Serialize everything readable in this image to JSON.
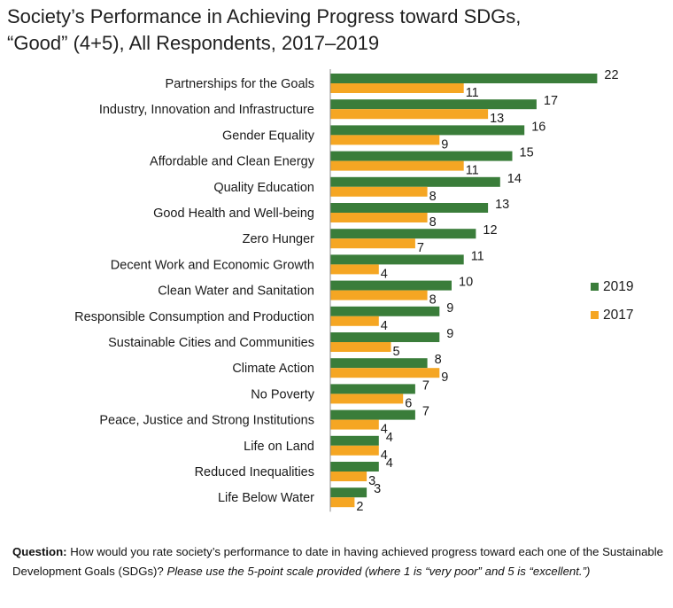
{
  "title": "Society’s Performance in Achieving Progress toward SDGs,\n“Good” (4+5), All Respondents, 2017–2019",
  "footnote": {
    "label": "Question:",
    "text": " How would you rate society’s performance to date in having achieved progress toward each one of the Sustainable Development Goals (SDGs)? ",
    "italic": "Please use the 5-point scale provided (where 1 is “very poor” and 5 is “excellent.”)"
  },
  "colors": {
    "2019": "#3a7d3a",
    "2017": "#f5a623"
  },
  "chart_data": {
    "type": "bar",
    "orientation": "horizontal",
    "title": "Society’s Performance in Achieving Progress toward SDGs, “Good” (4+5), All Respondents, 2017–2019",
    "categories": [
      "Partnerships for the Goals",
      "Industry, Innovation and Infrastructure",
      "Gender Equality",
      "Affordable and Clean Energy",
      "Quality Education",
      "Good Health and Well-being",
      "Zero Hunger",
      "Decent Work and Economic Growth",
      "Clean Water and Sanitation",
      "Responsible Consumption and Production",
      "Sustainable Cities and Communities",
      "Climate Action",
      "No Poverty",
      "Peace, Justice and Strong Institutions",
      "Life on Land",
      "Reduced Inequalities",
      "Life Below Water"
    ],
    "series": [
      {
        "name": "2019",
        "values": [
          22,
          17,
          16,
          15,
          14,
          13,
          12,
          11,
          10,
          9,
          9,
          8,
          7,
          7,
          4,
          4,
          3
        ]
      },
      {
        "name": "2017",
        "values": [
          11,
          13,
          9,
          11,
          8,
          8,
          7,
          4,
          8,
          4,
          5,
          9,
          6,
          4,
          4,
          3,
          2
        ]
      }
    ],
    "xlim": [
      0,
      22
    ],
    "legend": [
      "2019",
      "2017"
    ],
    "legend_position": "right"
  }
}
